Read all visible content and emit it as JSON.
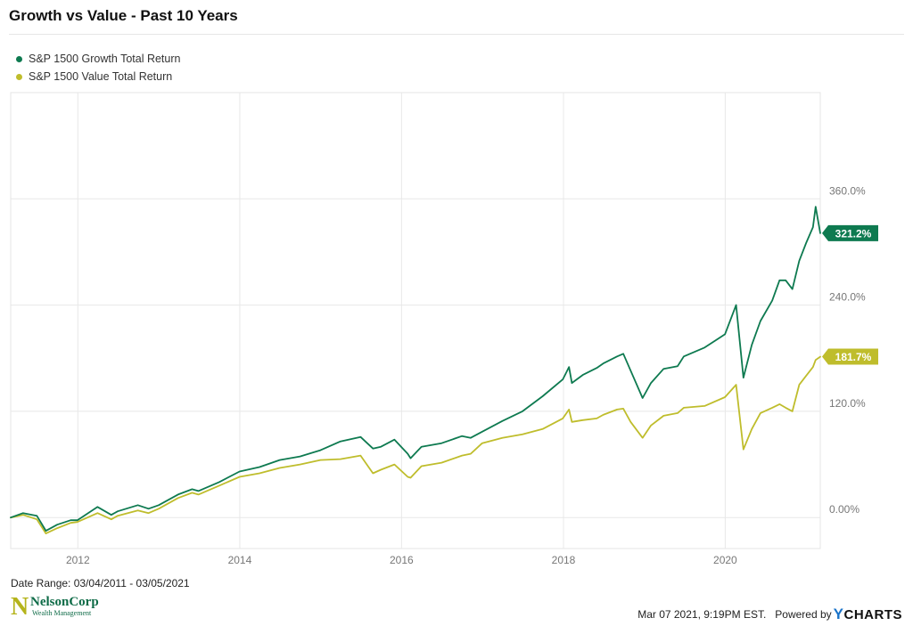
{
  "title": "Growth vs Value - Past 10 Years",
  "date_range": "Date Range: 03/04/2011 - 03/05/2021",
  "timestamp": "Mar 07 2021, 9:19PM EST.",
  "powered_by": "Powered by",
  "ycharts_y": "Y",
  "ycharts_rest": "CHARTS",
  "logo": {
    "letter": "N",
    "name": "NelsonCorp",
    "subtitle": "Wealth Management"
  },
  "colors": {
    "growth": "#0e7a50",
    "value": "#bfbd2c",
    "grid": "#e8e8e8",
    "axis_text": "#777777"
  },
  "chart_data": {
    "type": "line",
    "title": "Growth vs Value - Past 10 Years",
    "xlabel": "",
    "ylabel": "",
    "x_ticks": [
      "2012",
      "2014",
      "2016",
      "2018",
      "2020"
    ],
    "y_ticks": [
      "0.00%",
      "120.0%",
      "240.0%",
      "360.0%"
    ],
    "y_tick_values": [
      0,
      120,
      240,
      360
    ],
    "xlim": [
      "2011-03-04",
      "2021-03-05"
    ],
    "ylim": [
      -35,
      480
    ],
    "grid": true,
    "legend_position": "top-left",
    "series": [
      {
        "name": "S&P 1500 Growth Total Return",
        "color": "#0e7a50",
        "end_label": "321.2%",
        "x": [
          "2011-03-04",
          "2011-04-29",
          "2011-06-30",
          "2011-08-10",
          "2011-09-30",
          "2011-11-30",
          "2011-12-30",
          "2012-03-30",
          "2012-05-31",
          "2012-06-29",
          "2012-09-28",
          "2012-11-15",
          "2012-12-31",
          "2013-03-28",
          "2013-05-31",
          "2013-06-28",
          "2013-09-30",
          "2013-12-31",
          "2014-03-31",
          "2014-06-30",
          "2014-09-30",
          "2014-12-31",
          "2015-03-31",
          "2015-06-30",
          "2015-08-25",
          "2015-09-30",
          "2015-11-30",
          "2016-01-29",
          "2016-02-11",
          "2016-03-31",
          "2016-06-30",
          "2016-09-30",
          "2016-11-08",
          "2016-12-30",
          "2017-03-31",
          "2017-06-30",
          "2017-09-29",
          "2017-12-29",
          "2018-01-26",
          "2018-02-08",
          "2018-03-29",
          "2018-05-31",
          "2018-06-29",
          "2018-08-31",
          "2018-09-28",
          "2018-10-31",
          "2018-12-24",
          "2019-01-31",
          "2019-03-29",
          "2019-05-31",
          "2019-06-28",
          "2019-09-30",
          "2019-12-31",
          "2020-02-19",
          "2020-03-23",
          "2020-04-30",
          "2020-06-08",
          "2020-07-31",
          "2020-09-02",
          "2020-09-30",
          "2020-10-30",
          "2020-11-30",
          "2020-12-31",
          "2021-01-31",
          "2021-02-12",
          "2021-03-05"
        ],
        "y": [
          0,
          5,
          2,
          -15,
          -8,
          -3,
          -3,
          12,
          3,
          7,
          14,
          10,
          14,
          26,
          32,
          30,
          40,
          52,
          57,
          65,
          69,
          76,
          86,
          91,
          78,
          80,
          88,
          72,
          67,
          80,
          84,
          92,
          90,
          97,
          109,
          120,
          137,
          156,
          170,
          152,
          161,
          169,
          174,
          182,
          185,
          166,
          135,
          152,
          168,
          171,
          182,
          192,
          207,
          240,
          158,
          195,
          222,
          245,
          268,
          268,
          258,
          290,
          310,
          328,
          351,
          321.2
        ]
      },
      {
        "name": "S&P 1500 Value Total Return",
        "color": "#bfbd2c",
        "end_label": "181.7%",
        "x": [
          "2011-03-04",
          "2011-04-29",
          "2011-06-30",
          "2011-08-10",
          "2011-09-30",
          "2011-11-30",
          "2011-12-30",
          "2012-03-30",
          "2012-05-31",
          "2012-06-29",
          "2012-09-28",
          "2012-11-15",
          "2012-12-31",
          "2013-03-28",
          "2013-05-31",
          "2013-06-28",
          "2013-09-30",
          "2013-12-31",
          "2014-03-31",
          "2014-06-30",
          "2014-09-30",
          "2014-12-31",
          "2015-03-31",
          "2015-06-30",
          "2015-08-25",
          "2015-09-30",
          "2015-11-30",
          "2016-01-29",
          "2016-02-11",
          "2016-03-31",
          "2016-06-30",
          "2016-09-30",
          "2016-11-08",
          "2016-12-30",
          "2017-03-31",
          "2017-06-30",
          "2017-09-29",
          "2017-12-29",
          "2018-01-26",
          "2018-02-08",
          "2018-03-29",
          "2018-05-31",
          "2018-06-29",
          "2018-08-31",
          "2018-09-28",
          "2018-10-31",
          "2018-12-24",
          "2019-01-31",
          "2019-03-29",
          "2019-05-31",
          "2019-06-28",
          "2019-09-30",
          "2019-12-31",
          "2020-02-19",
          "2020-03-23",
          "2020-04-30",
          "2020-06-08",
          "2020-07-31",
          "2020-09-02",
          "2020-09-30",
          "2020-10-30",
          "2020-11-30",
          "2020-12-31",
          "2021-01-31",
          "2021-02-12",
          "2021-03-05"
        ],
        "y": [
          0,
          3,
          -2,
          -18,
          -12,
          -6,
          -5,
          5,
          -2,
          2,
          8,
          5,
          10,
          22,
          28,
          26,
          36,
          46,
          50,
          56,
          60,
          65,
          66,
          70,
          50,
          54,
          60,
          46,
          45,
          58,
          62,
          70,
          72,
          84,
          90,
          94,
          100,
          112,
          122,
          108,
          110,
          112,
          116,
          122,
          123,
          108,
          90,
          104,
          115,
          118,
          124,
          126,
          136,
          150,
          77,
          100,
          118,
          124,
          128,
          124,
          120,
          150,
          160,
          170,
          178,
          181.7
        ]
      }
    ]
  }
}
